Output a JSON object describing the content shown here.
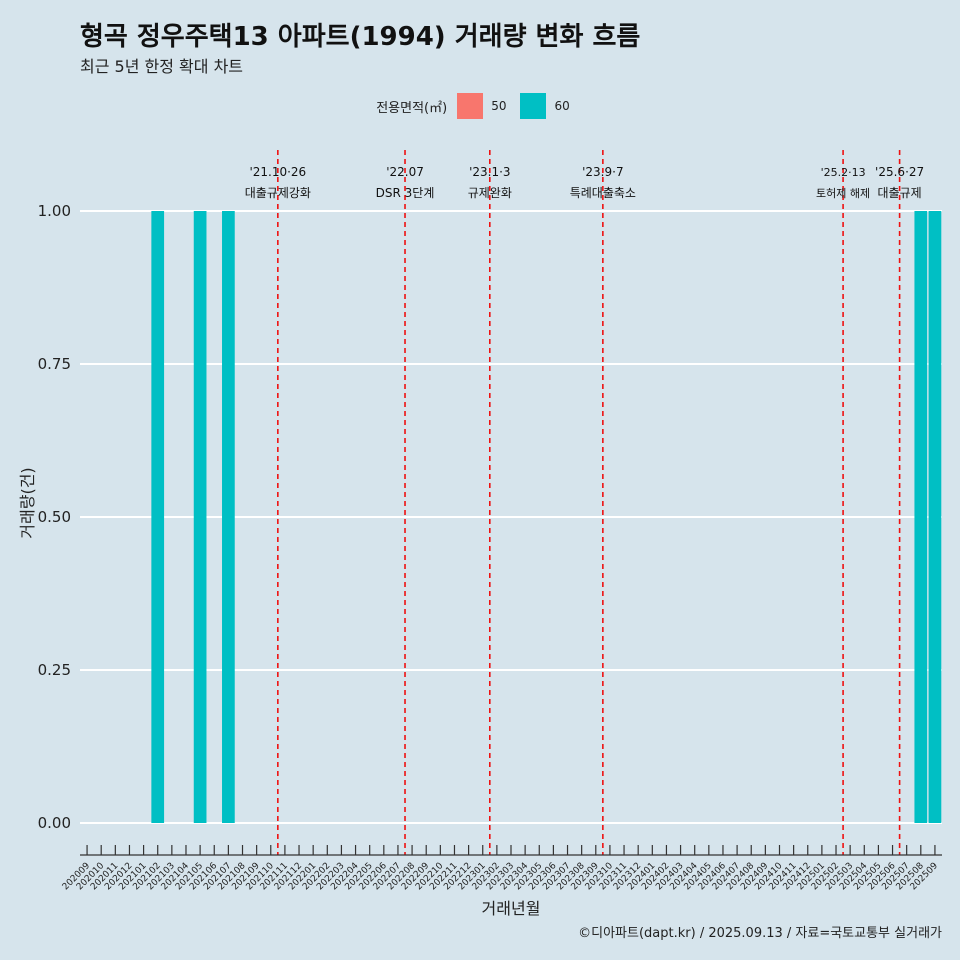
{
  "title": "형곡 정우주택13 아파트(1994) 거래량 변화 흐름",
  "subtitle": "최근 5년 한정 확대 차트",
  "caption": "©디아파트(dapt.kr) / 2025.09.13 / 자료=국토교통부 실거래가",
  "legend": {
    "title": "전용면적(㎡)",
    "items": [
      {
        "label": "50",
        "color": "#f8766d"
      },
      {
        "label": "60",
        "color": "#00bfc4"
      }
    ]
  },
  "chart_data": {
    "type": "bar",
    "xlabel": "거래년월",
    "ylabel": "거래량(건)",
    "ylim": [
      0,
      1
    ],
    "yticks": [
      "0.00",
      "0.25",
      "0.50",
      "0.75",
      "1.00"
    ],
    "categories": [
      "202009",
      "202010",
      "202011",
      "202012",
      "202101",
      "202102",
      "202103",
      "202104",
      "202105",
      "202106",
      "202107",
      "202108",
      "202109",
      "202110",
      "202111",
      "202112",
      "202201",
      "202202",
      "202203",
      "202204",
      "202205",
      "202206",
      "202207",
      "202208",
      "202209",
      "202210",
      "202211",
      "202212",
      "202301",
      "202302",
      "202303",
      "202304",
      "202305",
      "202306",
      "202307",
      "202308",
      "202309",
      "202310",
      "202311",
      "202312",
      "202401",
      "202402",
      "202403",
      "202404",
      "202405",
      "202406",
      "202407",
      "202408",
      "202409",
      "202410",
      "202411",
      "202412",
      "202501",
      "202502",
      "202503",
      "202504",
      "202505",
      "202506",
      "202507",
      "202508",
      "202509"
    ],
    "series": [
      {
        "name": "50",
        "color": "#f8766d",
        "values": [
          0,
          0,
          0,
          0,
          0,
          0,
          0,
          0,
          0,
          0,
          0,
          0,
          0,
          0,
          0,
          0,
          0,
          0,
          0,
          0,
          0,
          0,
          0,
          0,
          0,
          0,
          0,
          0,
          0,
          0,
          0,
          0,
          0,
          0,
          0,
          0,
          0,
          0,
          0,
          0,
          0,
          0,
          0,
          0,
          0,
          0,
          0,
          0,
          0,
          0,
          0,
          0,
          0,
          0,
          0,
          0,
          0,
          0,
          0,
          0,
          0
        ]
      },
      {
        "name": "60",
        "color": "#00bfc4",
        "values": [
          0,
          0,
          0,
          0,
          0,
          1,
          0,
          0,
          1,
          0,
          1,
          0,
          0,
          0,
          0,
          0,
          0,
          0,
          0,
          0,
          0,
          0,
          0,
          0,
          0,
          0,
          0,
          0,
          0,
          0,
          0,
          0,
          0,
          0,
          0,
          0,
          0,
          0,
          0,
          0,
          0,
          0,
          0,
          0,
          0,
          0,
          0,
          0,
          0,
          0,
          0,
          0,
          0,
          0,
          0,
          0,
          0,
          0,
          0,
          1,
          1
        ]
      }
    ],
    "events": [
      {
        "x": 13.5,
        "date": "'21.10·26",
        "label": "대출규제강화"
      },
      {
        "x": 22.5,
        "date": "'22.07",
        "label": "DSR 3단계"
      },
      {
        "x": 28.5,
        "date": "'23.1·3",
        "label": "규제완화"
      },
      {
        "x": 36.5,
        "date": "'23.9·7",
        "label": "특례대출축소"
      },
      {
        "x": 53.5,
        "date": "'25.2·13",
        "label": "토허제 해제"
      },
      {
        "x": 57.5,
        "date": "'25.6·27",
        "label": "대출규제"
      }
    ]
  }
}
